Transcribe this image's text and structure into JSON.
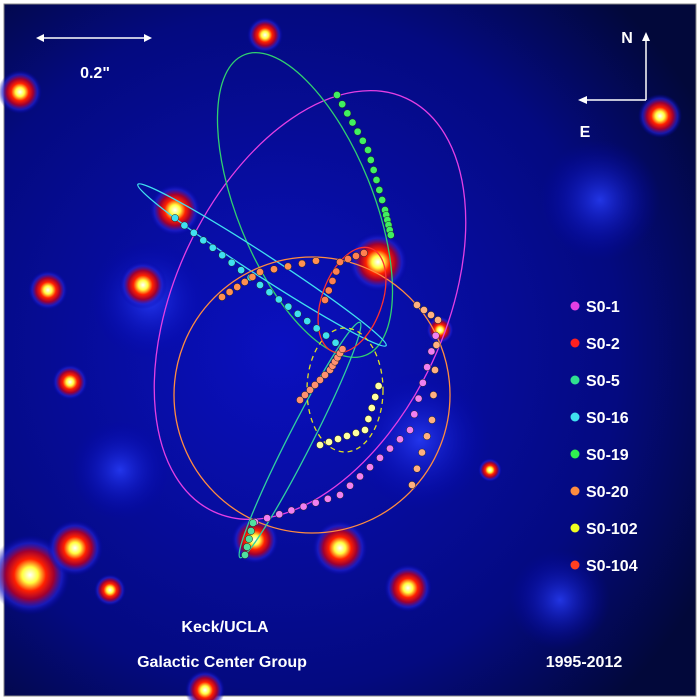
{
  "scale_bar": {
    "label": "0.2\""
  },
  "compass": {
    "north": "N",
    "east": "E"
  },
  "legend": [
    {
      "name": "S0-1",
      "color": "#e43fe4"
    },
    {
      "name": "S0-2",
      "color": "#ff2020"
    },
    {
      "name": "S0-5",
      "color": "#30e090"
    },
    {
      "name": "S0-16",
      "color": "#40e0f0"
    },
    {
      "name": "S0-19",
      "color": "#30f050"
    },
    {
      "name": "S0-20",
      "color": "#ff8c40"
    },
    {
      "name": "S0-102",
      "color": "#f0ff20"
    },
    {
      "name": "S0-104",
      "color": "#ff4020"
    }
  ],
  "credit": {
    "line1": "Keck/UCLA",
    "line2": "Galactic Center Group"
  },
  "years": "1995-2012"
}
